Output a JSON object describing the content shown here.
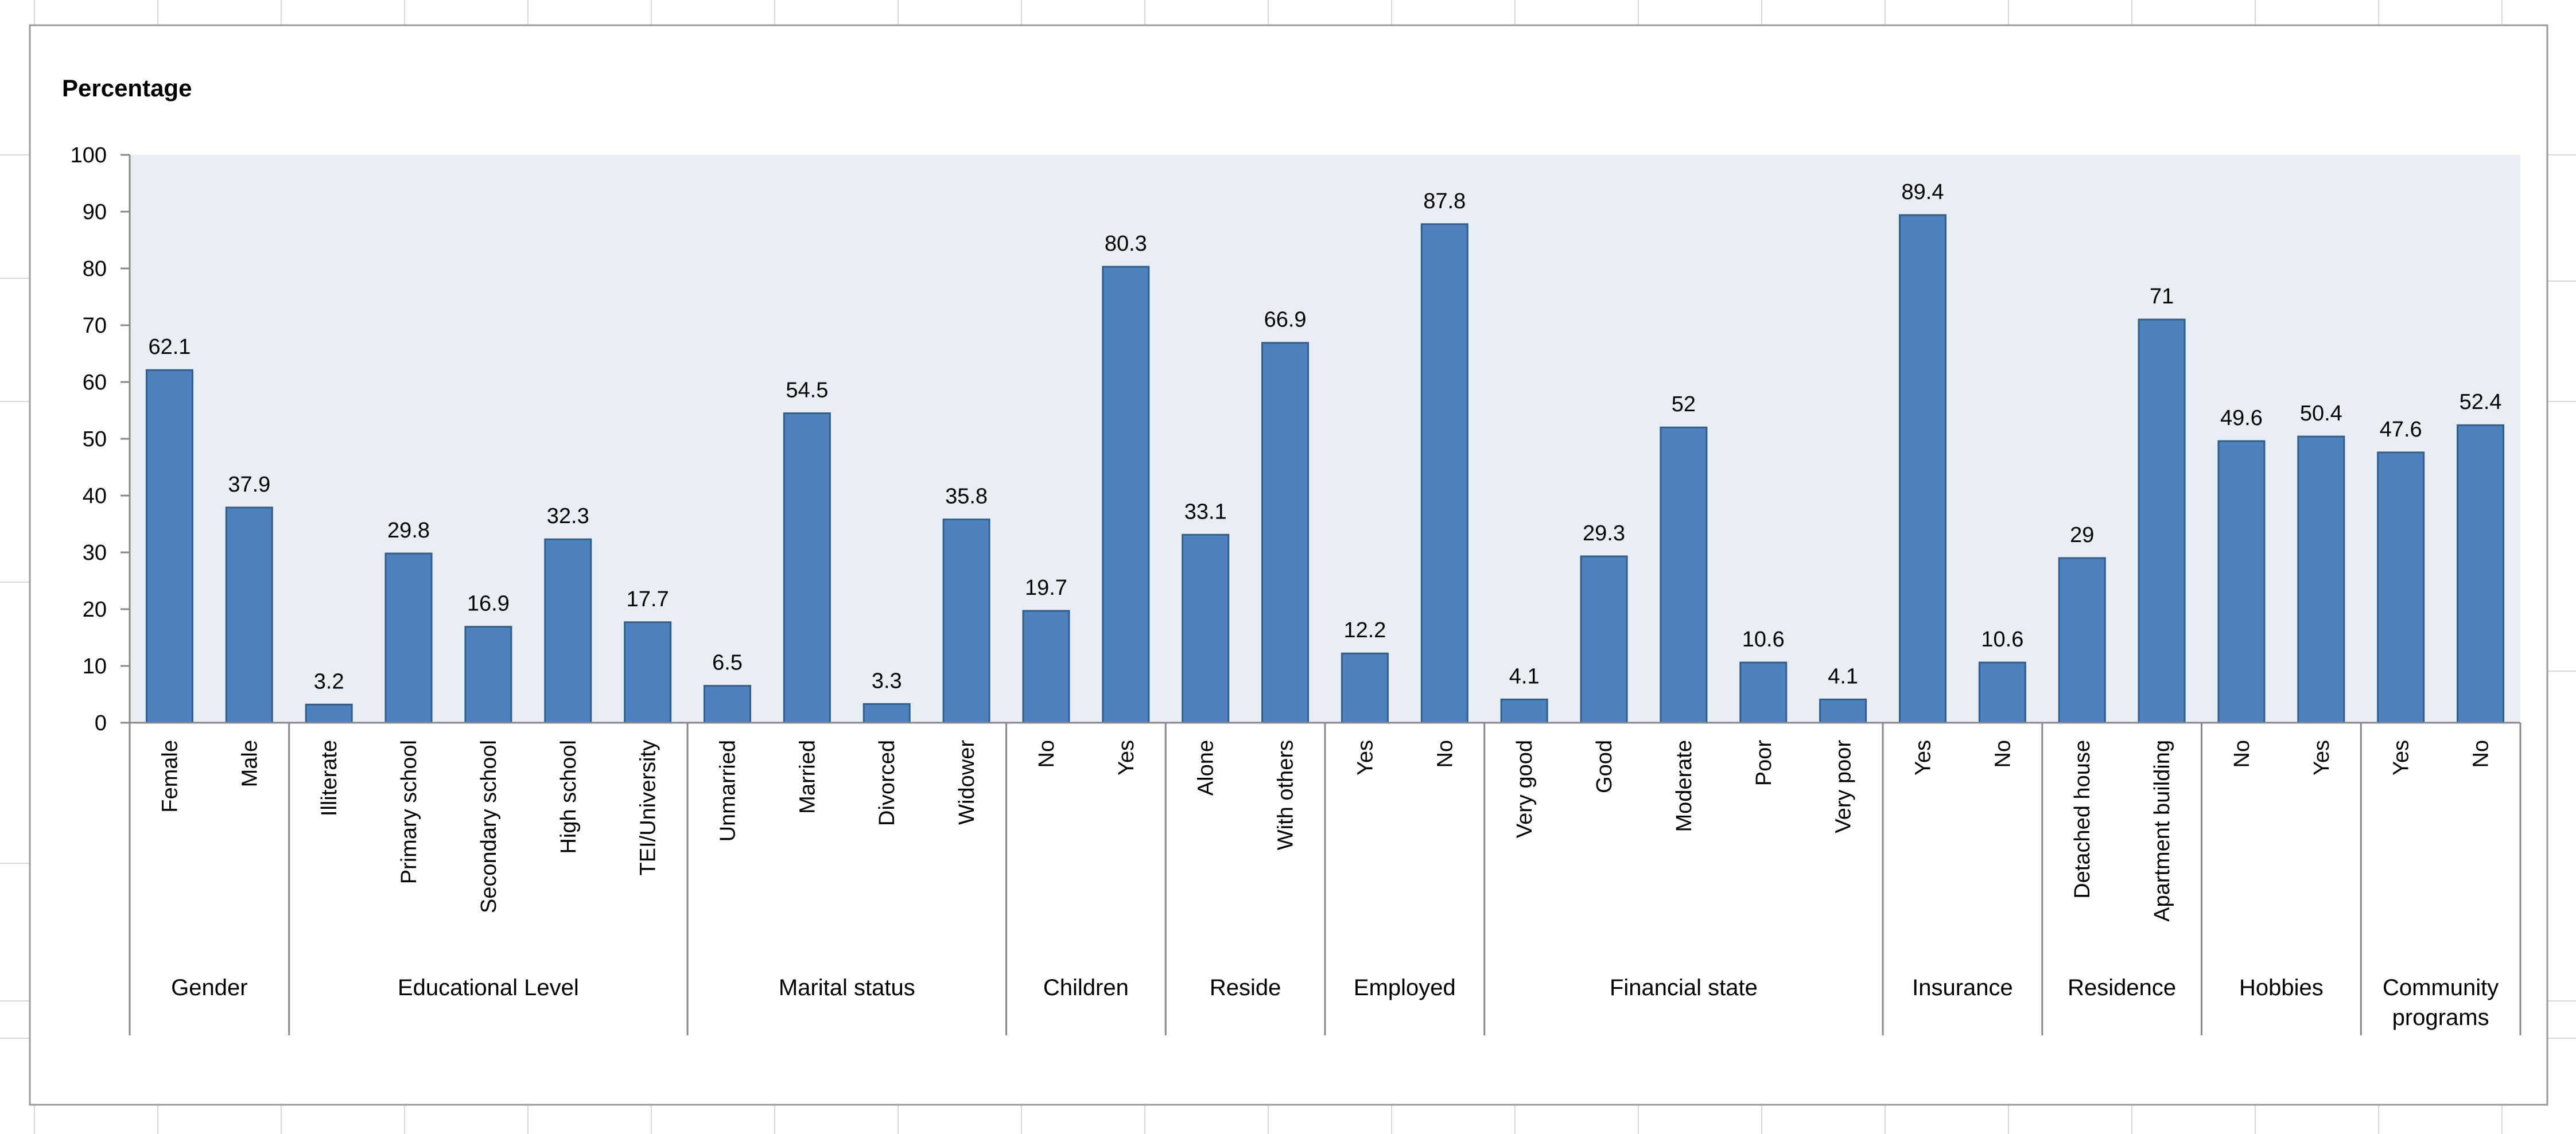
{
  "chart_data": {
    "type": "bar",
    "ylabel": "Percentage",
    "ylim": [
      0,
      100
    ],
    "yticks": [
      0,
      10,
      20,
      30,
      40,
      50,
      60,
      70,
      80,
      90,
      100
    ],
    "grid": false,
    "legend": "none",
    "colors": {
      "bar": "#4f81bd",
      "bar_edge": "#2f5f8f",
      "plot_bg": "#e9edf4",
      "axis": "#888888"
    },
    "groups": [
      {
        "name": "Gender",
        "categories": [
          "Female",
          "Male"
        ],
        "values": [
          62.1,
          37.9
        ]
      },
      {
        "name": "Educational Level",
        "categories": [
          "Illiterate",
          "Primary school",
          "Secondary school",
          "High school",
          "TEI/University"
        ],
        "values": [
          3.2,
          29.8,
          16.9,
          32.3,
          17.7
        ]
      },
      {
        "name": "Marital status",
        "categories": [
          "Unmarried",
          "Married",
          "Divorced",
          "Widower"
        ],
        "values": [
          6.5,
          54.5,
          3.3,
          35.8
        ]
      },
      {
        "name": "Children",
        "categories": [
          "No",
          "Yes"
        ],
        "values": [
          19.7,
          80.3
        ]
      },
      {
        "name": "Reside",
        "categories": [
          "Alone",
          "With others"
        ],
        "values": [
          33.1,
          66.9
        ]
      },
      {
        "name": "Employed",
        "categories": [
          "Yes",
          "No"
        ],
        "values": [
          12.2,
          87.8
        ]
      },
      {
        "name": "Financial state",
        "categories": [
          "Very good",
          "Good",
          "Moderate",
          "Poor",
          "Very poor"
        ],
        "values": [
          4.1,
          29.3,
          52,
          10.6,
          4.1
        ]
      },
      {
        "name": "Insurance",
        "categories": [
          "Yes",
          "No"
        ],
        "values": [
          89.4,
          10.6
        ]
      },
      {
        "name": "Residence",
        "categories": [
          "Detached house",
          "Apartment building"
        ],
        "values": [
          29,
          71
        ]
      },
      {
        "name": "Hobbies",
        "categories": [
          "No",
          "Yes"
        ],
        "values": [
          49.6,
          50.4
        ]
      },
      {
        "name": "Community programs",
        "name_lines": [
          "Community",
          "programs"
        ],
        "categories": [
          "Yes",
          "No"
        ],
        "values": [
          47.6,
          52.4
        ]
      }
    ]
  }
}
